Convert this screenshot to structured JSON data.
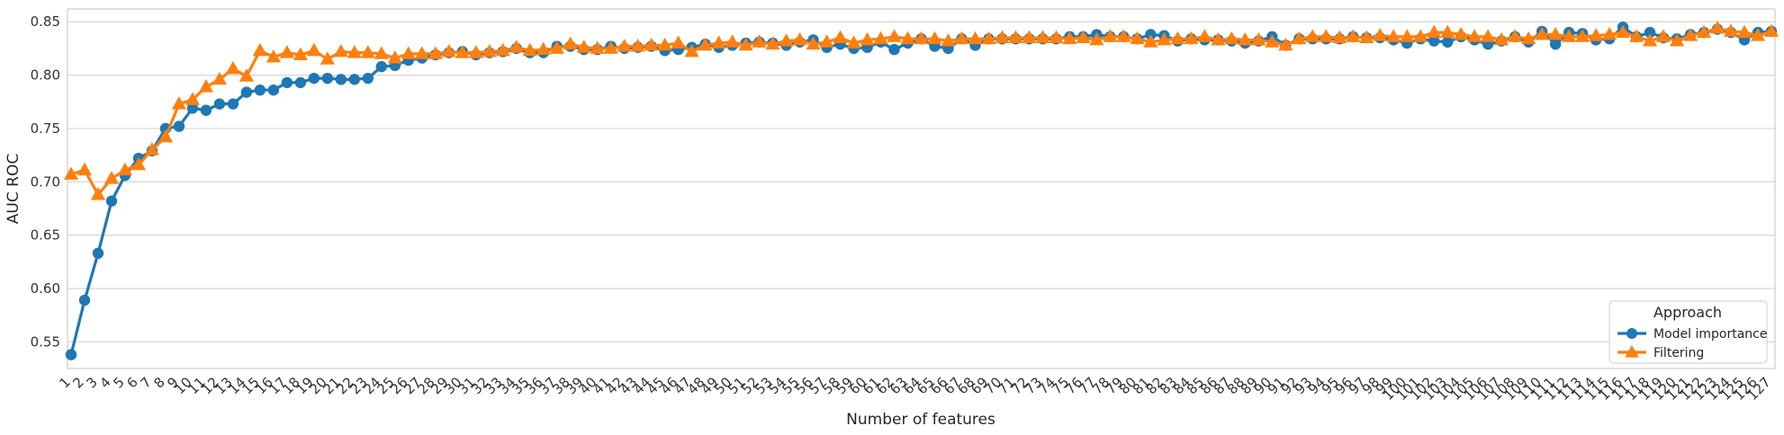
{
  "chart_data": {
    "type": "line",
    "xlabel": "Number of features",
    "ylabel": "AUC ROC",
    "ylim": [
      0.525,
      0.862
    ],
    "yticks": [
      "0.55",
      "0.60",
      "0.65",
      "0.70",
      "0.75",
      "0.80",
      "0.85"
    ],
    "grid": true,
    "legend": {
      "title": "Approach",
      "placement": "lower-right"
    },
    "categories": [
      "1",
      "2",
      "3",
      "4",
      "5",
      "6",
      "7",
      "8",
      "9",
      "10",
      "11",
      "12",
      "13",
      "14",
      "15",
      "16",
      "17",
      "18",
      "19",
      "20",
      "21",
      "22",
      "23",
      "24",
      "25",
      "26",
      "27",
      "28",
      "29",
      "30",
      "31",
      "32",
      "33",
      "34",
      "35",
      "36",
      "37",
      "38",
      "39",
      "40",
      "41",
      "42",
      "43",
      "44",
      "45",
      "46",
      "47",
      "48",
      "49",
      "50",
      "51",
      "52",
      "53",
      "54",
      "55",
      "56",
      "57",
      "58",
      "59",
      "60",
      "61",
      "62",
      "63",
      "64",
      "65",
      "66",
      "67",
      "68",
      "69",
      "70",
      "71",
      "72",
      "73",
      "74",
      "75",
      "76",
      "77",
      "78",
      "79",
      "80",
      "81",
      "82",
      "83",
      "84",
      "85",
      "86",
      "87",
      "88",
      "89",
      "90",
      "91",
      "92",
      "93",
      "94",
      "95",
      "96",
      "97",
      "98",
      "99",
      "100",
      "101",
      "102",
      "103",
      "104",
      "105",
      "106",
      "107",
      "108",
      "109",
      "110",
      "111",
      "112",
      "113",
      "114",
      "115",
      "116",
      "117",
      "118",
      "119",
      "120",
      "121",
      "122",
      "123",
      "124",
      "125",
      "126",
      "127"
    ],
    "series": [
      {
        "name": "Model importance",
        "color": "#1f77b4",
        "marker": "circle",
        "values": [
          0.538,
          0.589,
          0.633,
          0.682,
          0.706,
          0.722,
          0.729,
          0.75,
          0.752,
          0.769,
          0.767,
          0.773,
          0.773,
          0.784,
          0.786,
          0.786,
          0.793,
          0.793,
          0.797,
          0.797,
          0.796,
          0.796,
          0.797,
          0.808,
          0.809,
          0.814,
          0.816,
          0.819,
          0.821,
          0.822,
          0.819,
          0.821,
          0.822,
          0.825,
          0.821,
          0.821,
          0.827,
          0.827,
          0.824,
          0.824,
          0.827,
          0.825,
          0.826,
          0.827,
          0.823,
          0.824,
          0.826,
          0.829,
          0.826,
          0.828,
          0.83,
          0.831,
          0.83,
          0.828,
          0.831,
          0.833,
          0.826,
          0.829,
          0.825,
          0.826,
          0.831,
          0.824,
          0.83,
          0.834,
          0.827,
          0.825,
          0.834,
          0.828,
          0.834,
          0.834,
          0.834,
          0.834,
          0.834,
          0.834,
          0.836,
          0.836,
          0.838,
          0.836,
          0.836,
          0.834,
          0.838,
          0.837,
          0.832,
          0.834,
          0.833,
          0.833,
          0.832,
          0.83,
          0.832,
          0.836,
          0.828,
          0.834,
          0.834,
          0.834,
          0.834,
          0.836,
          0.835,
          0.835,
          0.833,
          0.83,
          0.834,
          0.832,
          0.831,
          0.836,
          0.833,
          0.829,
          0.832,
          0.836,
          0.831,
          0.841,
          0.829,
          0.84,
          0.839,
          0.833,
          0.834,
          0.845,
          0.836,
          0.84,
          0.835,
          0.834,
          0.838,
          0.84,
          0.843,
          0.84,
          0.833,
          0.84,
          0.841
        ]
      },
      {
        "name": "Filtering",
        "color": "#ff7f0e",
        "marker": "triangle",
        "values": [
          0.707,
          0.711,
          0.688,
          0.703,
          0.711,
          0.716,
          0.73,
          0.742,
          0.773,
          0.777,
          0.789,
          0.796,
          0.806,
          0.799,
          0.823,
          0.817,
          0.821,
          0.819,
          0.823,
          0.815,
          0.822,
          0.821,
          0.821,
          0.82,
          0.816,
          0.82,
          0.82,
          0.82,
          0.822,
          0.821,
          0.821,
          0.822,
          0.823,
          0.826,
          0.823,
          0.824,
          0.825,
          0.829,
          0.826,
          0.825,
          0.825,
          0.827,
          0.827,
          0.828,
          0.828,
          0.83,
          0.822,
          0.828,
          0.83,
          0.831,
          0.828,
          0.831,
          0.829,
          0.832,
          0.833,
          0.829,
          0.831,
          0.835,
          0.83,
          0.833,
          0.834,
          0.836,
          0.834,
          0.834,
          0.834,
          0.832,
          0.834,
          0.834,
          0.834,
          0.835,
          0.835,
          0.835,
          0.835,
          0.835,
          0.834,
          0.835,
          0.833,
          0.836,
          0.836,
          0.834,
          0.831,
          0.833,
          0.834,
          0.834,
          0.836,
          0.833,
          0.834,
          0.833,
          0.833,
          0.831,
          0.828,
          0.834,
          0.836,
          0.836,
          0.835,
          0.836,
          0.835,
          0.837,
          0.836,
          0.836,
          0.836,
          0.84,
          0.84,
          0.838,
          0.836,
          0.836,
          0.833,
          0.836,
          0.834,
          0.838,
          0.838,
          0.836,
          0.836,
          0.837,
          0.838,
          0.84,
          0.836,
          0.832,
          0.836,
          0.832,
          0.837,
          0.84,
          0.844,
          0.841,
          0.84,
          0.837,
          0.841
        ]
      }
    ]
  }
}
